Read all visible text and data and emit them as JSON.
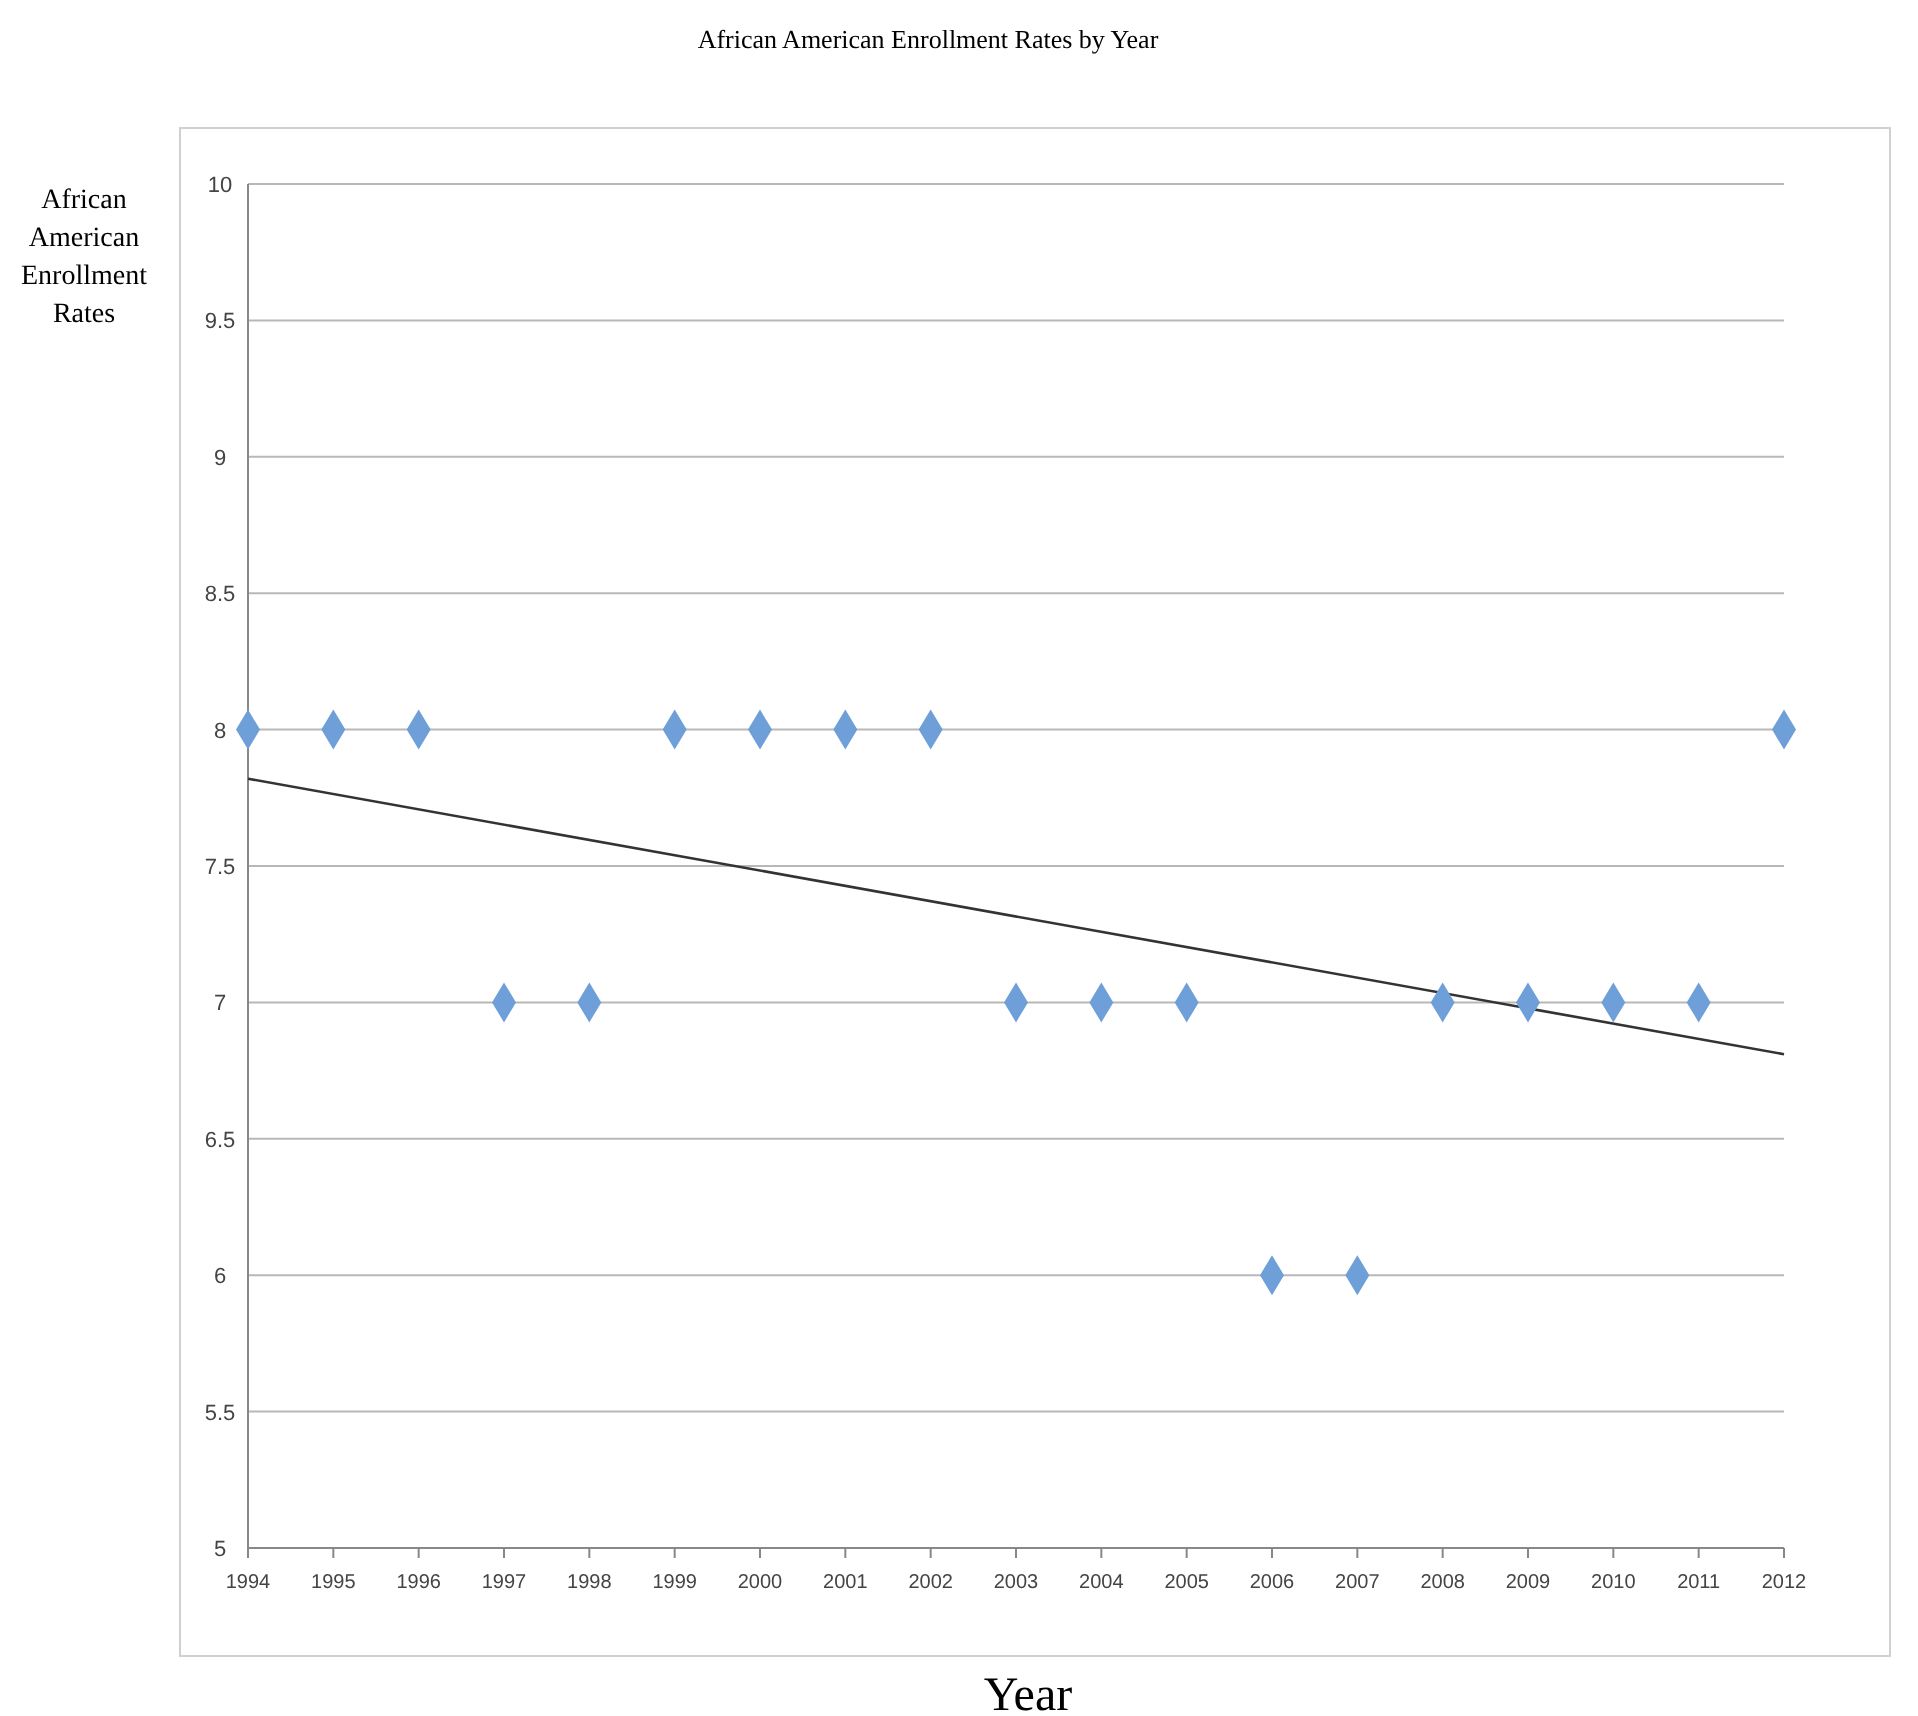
{
  "chart_data": {
    "type": "scatter",
    "title": "African American Enrollment Rates by Year",
    "xlabel": "Year",
    "ylabel": "African American Enrollment Rates",
    "x": [
      1994,
      1995,
      1996,
      1997,
      1998,
      1999,
      2000,
      2001,
      2002,
      2003,
      2004,
      2005,
      2006,
      2007,
      2008,
      2009,
      2010,
      2011,
      2012
    ],
    "series": [
      {
        "color": "#6f9fd8",
        "marker": "diamond",
        "values": [
          8,
          8,
          8,
          7,
          7,
          8,
          8,
          8,
          8,
          7,
          7,
          7,
          6,
          6,
          7,
          7,
          7,
          7,
          8
        ]
      },
      {
        "type": "line",
        "color": "#333333",
        "x": [
          1994,
          2012
        ],
        "values": [
          7.82,
          6.81
        ]
      }
    ],
    "xlim": [
      1994,
      2012
    ],
    "xticks": [
      1994,
      1995,
      1996,
      1997,
      1998,
      1999,
      2000,
      2001,
      2002,
      2003,
      2004,
      2005,
      2006,
      2007,
      2008,
      2009,
      2010,
      2011,
      2012
    ],
    "ylim": [
      5,
      10
    ],
    "yticks": [
      5,
      5.5,
      6,
      6.5,
      7,
      7.5,
      8,
      8.5,
      9,
      9.5,
      10
    ],
    "grid": "y"
  }
}
